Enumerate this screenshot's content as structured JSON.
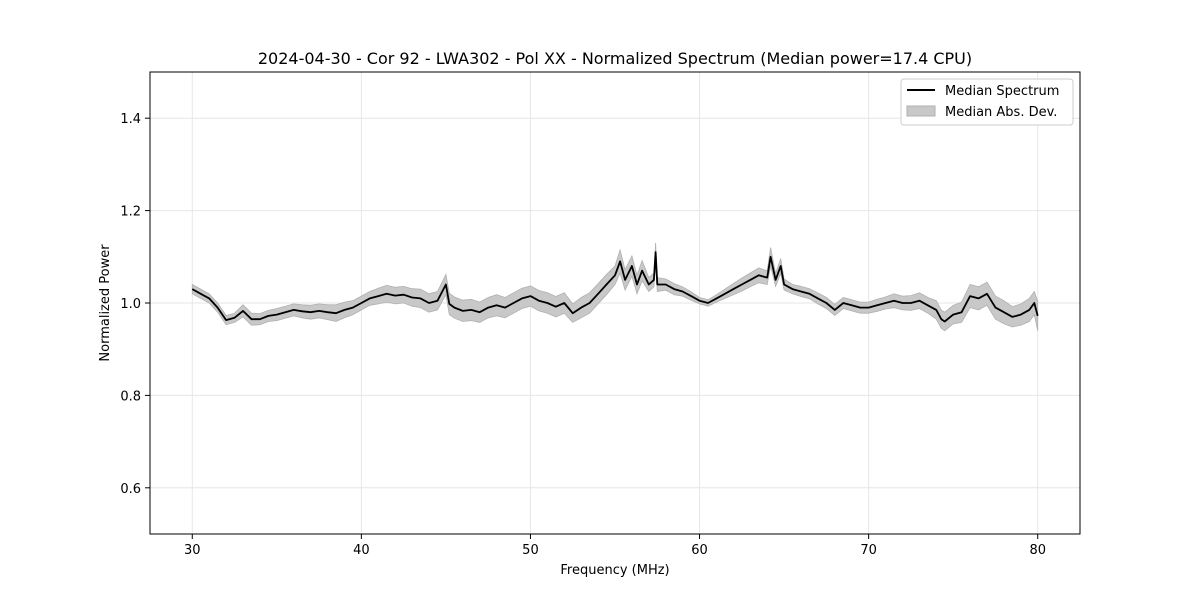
{
  "colors": {
    "line": "#000000",
    "band": "#c8c8c8",
    "band_edge": "#b0b0b0",
    "grid": "#e6e6e6",
    "axes": "#000000",
    "background": "#ffffff"
  },
  "chart_data": {
    "type": "line",
    "title": "2024-04-30 - Cor 92 - LWA302 - Pol XX - Normalized Spectrum (Median power=17.4 CPU)",
    "xlabel": "Frequency (MHz)",
    "ylabel": "Normalized Power",
    "xlim": [
      27.5,
      82.5
    ],
    "ylim": [
      0.5,
      1.5
    ],
    "xticks": [
      30,
      40,
      50,
      60,
      70,
      80
    ],
    "xtick_labels": [
      "30",
      "40",
      "50",
      "60",
      "70",
      "80"
    ],
    "yticks": [
      0.6,
      0.8,
      1.0,
      1.2,
      1.4
    ],
    "ytick_labels": [
      "0.6",
      "0.8",
      "1.0",
      "1.2",
      "1.4"
    ],
    "grid": true,
    "legend_position": "top-right",
    "legend": [
      "Median Spectrum",
      "Median Abs. Dev."
    ],
    "series": [
      {
        "name": "Median Spectrum",
        "x": [
          30.0,
          30.5,
          31.0,
          31.5,
          32.0,
          32.5,
          33.0,
          33.5,
          34.0,
          34.5,
          35.0,
          35.5,
          36.0,
          36.5,
          37.0,
          37.5,
          38.0,
          38.5,
          39.0,
          39.5,
          40.0,
          40.5,
          41.0,
          41.5,
          42.0,
          42.5,
          43.0,
          43.5,
          44.0,
          44.5,
          45.0,
          45.2,
          45.5,
          46.0,
          46.5,
          47.0,
          47.5,
          48.0,
          48.5,
          49.0,
          49.5,
          50.0,
          50.5,
          51.0,
          51.5,
          52.0,
          52.5,
          53.0,
          53.5,
          54.0,
          54.5,
          55.0,
          55.3,
          55.6,
          56.0,
          56.3,
          56.6,
          57.0,
          57.3,
          57.4,
          57.5,
          58.0,
          58.5,
          59.0,
          59.5,
          60.0,
          60.5,
          61.0,
          61.5,
          62.0,
          62.5,
          63.0,
          63.5,
          64.0,
          64.2,
          64.5,
          64.8,
          65.0,
          65.5,
          66.0,
          66.5,
          67.0,
          67.5,
          68.0,
          68.5,
          69.0,
          69.5,
          70.0,
          70.5,
          71.0,
          71.5,
          72.0,
          72.5,
          73.0,
          73.5,
          74.0,
          74.3,
          74.5,
          75.0,
          75.5,
          76.0,
          76.5,
          77.0,
          77.5,
          78.0,
          78.5,
          79.0,
          79.5,
          79.8,
          80.0
        ],
        "values": [
          1.03,
          1.02,
          1.01,
          0.99,
          0.963,
          0.968,
          0.983,
          0.965,
          0.965,
          0.972,
          0.975,
          0.98,
          0.985,
          0.982,
          0.98,
          0.983,
          0.98,
          0.978,
          0.985,
          0.99,
          1.0,
          1.01,
          1.015,
          1.02,
          1.016,
          1.018,
          1.012,
          1.01,
          1.0,
          1.005,
          1.04,
          0.998,
          0.99,
          0.983,
          0.985,
          0.98,
          0.99,
          0.995,
          0.99,
          1.0,
          1.01,
          1.015,
          1.005,
          1.0,
          0.992,
          1.0,
          0.978,
          0.99,
          1.0,
          1.02,
          1.04,
          1.06,
          1.09,
          1.05,
          1.08,
          1.04,
          1.07,
          1.04,
          1.05,
          1.11,
          1.04,
          1.04,
          1.03,
          1.025,
          1.015,
          1.005,
          1.0,
          1.01,
          1.02,
          1.03,
          1.04,
          1.05,
          1.06,
          1.055,
          1.1,
          1.05,
          1.08,
          1.04,
          1.03,
          1.025,
          1.02,
          1.01,
          1.0,
          0.985,
          1.0,
          0.995,
          0.99,
          0.99,
          0.995,
          1.0,
          1.005,
          1.0,
          1.0,
          1.005,
          0.995,
          0.985,
          0.965,
          0.96,
          0.975,
          0.98,
          1.015,
          1.01,
          1.02,
          0.99,
          0.98,
          0.97,
          0.975,
          0.985,
          1.0,
          0.972
        ]
      },
      {
        "name": "Median Abs. Dev.",
        "x": [
          30.0,
          30.5,
          31.0,
          31.5,
          32.0,
          32.5,
          33.0,
          33.5,
          34.0,
          34.5,
          35.0,
          35.5,
          36.0,
          36.5,
          37.0,
          37.5,
          38.0,
          38.5,
          39.0,
          39.5,
          40.0,
          40.5,
          41.0,
          41.5,
          42.0,
          42.5,
          43.0,
          43.5,
          44.0,
          44.5,
          45.0,
          45.2,
          45.5,
          46.0,
          46.5,
          47.0,
          47.5,
          48.0,
          48.5,
          49.0,
          49.5,
          50.0,
          50.5,
          51.0,
          51.5,
          52.0,
          52.5,
          53.0,
          53.5,
          54.0,
          54.5,
          55.0,
          55.3,
          55.6,
          56.0,
          56.3,
          56.6,
          57.0,
          57.3,
          57.4,
          57.5,
          58.0,
          58.5,
          59.0,
          59.5,
          60.0,
          60.5,
          61.0,
          61.5,
          62.0,
          62.5,
          63.0,
          63.5,
          64.0,
          64.2,
          64.5,
          64.8,
          65.0,
          65.5,
          66.0,
          66.5,
          67.0,
          67.5,
          68.0,
          68.5,
          69.0,
          69.5,
          70.0,
          70.5,
          71.0,
          71.5,
          72.0,
          72.5,
          73.0,
          73.5,
          74.0,
          74.3,
          74.5,
          75.0,
          75.5,
          76.0,
          76.5,
          77.0,
          77.5,
          78.0,
          78.5,
          79.0,
          79.5,
          79.8,
          80.0
        ],
        "lower": [
          1.02,
          1.01,
          1.0,
          0.98,
          0.953,
          0.958,
          0.97,
          0.952,
          0.953,
          0.96,
          0.962,
          0.967,
          0.972,
          0.968,
          0.965,
          0.968,
          0.964,
          0.96,
          0.968,
          0.975,
          0.985,
          0.995,
          0.998,
          1.002,
          0.998,
          1.0,
          0.993,
          0.99,
          0.98,
          0.985,
          1.018,
          0.975,
          0.967,
          0.96,
          0.962,
          0.958,
          0.968,
          0.972,
          0.968,
          0.978,
          0.988,
          0.993,
          0.983,
          0.978,
          0.97,
          0.978,
          0.958,
          0.968,
          0.978,
          0.998,
          1.018,
          1.04,
          1.065,
          1.028,
          1.058,
          1.02,
          1.048,
          1.025,
          1.035,
          1.09,
          1.025,
          1.028,
          1.018,
          1.015,
          1.006,
          0.998,
          0.993,
          1.002,
          1.01,
          1.018,
          1.026,
          1.035,
          1.044,
          1.04,
          1.08,
          1.036,
          1.064,
          1.028,
          1.02,
          1.014,
          1.009,
          0.998,
          0.988,
          0.973,
          0.988,
          0.983,
          0.978,
          0.978,
          0.982,
          0.987,
          0.99,
          0.985,
          0.984,
          0.988,
          0.978,
          0.965,
          0.945,
          0.94,
          0.955,
          0.958,
          0.99,
          0.985,
          0.995,
          0.965,
          0.955,
          0.948,
          0.952,
          0.96,
          0.975,
          0.94
        ],
        "upper": [
          1.04,
          1.03,
          1.02,
          1.0,
          0.973,
          0.978,
          0.996,
          0.978,
          0.977,
          0.984,
          0.988,
          0.993,
          0.998,
          0.996,
          0.995,
          0.998,
          0.996,
          0.996,
          1.002,
          1.005,
          1.015,
          1.025,
          1.032,
          1.038,
          1.034,
          1.036,
          1.031,
          1.03,
          1.02,
          1.025,
          1.062,
          1.021,
          1.013,
          1.006,
          1.008,
          1.002,
          1.012,
          1.018,
          1.012,
          1.022,
          1.032,
          1.037,
          1.027,
          1.022,
          1.014,
          1.022,
          0.998,
          1.012,
          1.022,
          1.042,
          1.062,
          1.08,
          1.115,
          1.072,
          1.102,
          1.06,
          1.092,
          1.055,
          1.065,
          1.13,
          1.055,
          1.052,
          1.042,
          1.035,
          1.024,
          1.012,
          1.007,
          1.018,
          1.03,
          1.042,
          1.054,
          1.065,
          1.076,
          1.07,
          1.12,
          1.064,
          1.096,
          1.052,
          1.04,
          1.036,
          1.031,
          1.022,
          1.012,
          0.997,
          1.012,
          1.007,
          1.002,
          1.002,
          1.008,
          1.013,
          1.02,
          1.015,
          1.016,
          1.022,
          1.012,
          1.005,
          0.985,
          0.98,
          0.995,
          1.002,
          1.04,
          1.035,
          1.045,
          1.015,
          1.005,
          0.992,
          0.998,
          1.01,
          1.025,
          1.004
        ]
      }
    ]
  }
}
